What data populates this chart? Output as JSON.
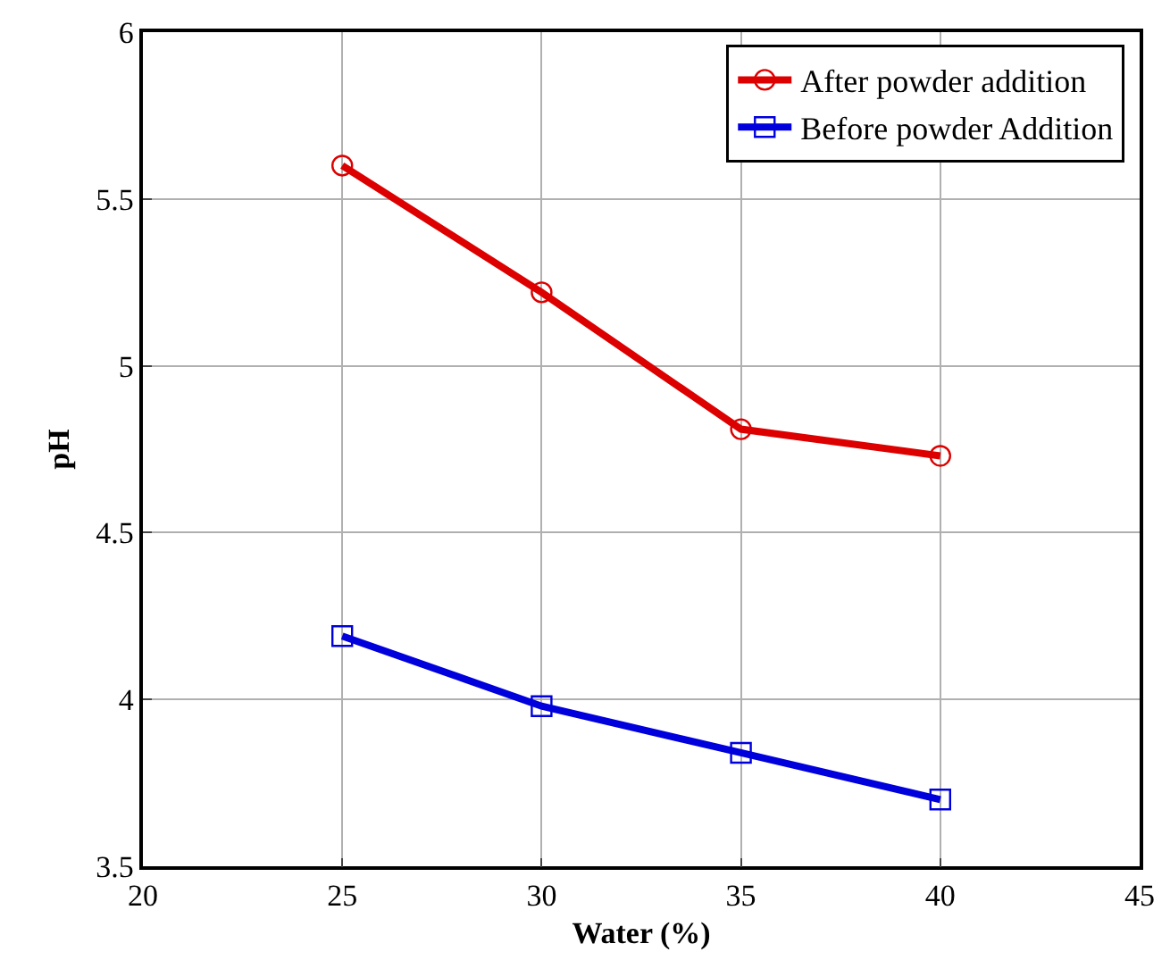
{
  "chart_data": {
    "type": "line",
    "xlabel": "Water (%)",
    "ylabel": "pH",
    "x": [
      25,
      30,
      35,
      40
    ],
    "series": [
      {
        "name": "After powder addition",
        "color": "#dd0000",
        "values": [
          5.6,
          5.22,
          4.81,
          4.73
        ],
        "marker": "circle"
      },
      {
        "name": "Before powder Addition",
        "color": "#0000dd",
        "values": [
          4.19,
          3.98,
          3.84,
          3.7
        ],
        "marker": "square"
      }
    ],
    "xlim": [
      20,
      45
    ],
    "xticks": [
      20,
      25,
      30,
      35,
      40,
      45
    ],
    "ylim": [
      3.5,
      6
    ],
    "yticks": [
      3.5,
      4,
      4.5,
      5,
      5.5,
      6
    ],
    "grid": true,
    "legend": "top right",
    "line_style": "solid"
  }
}
